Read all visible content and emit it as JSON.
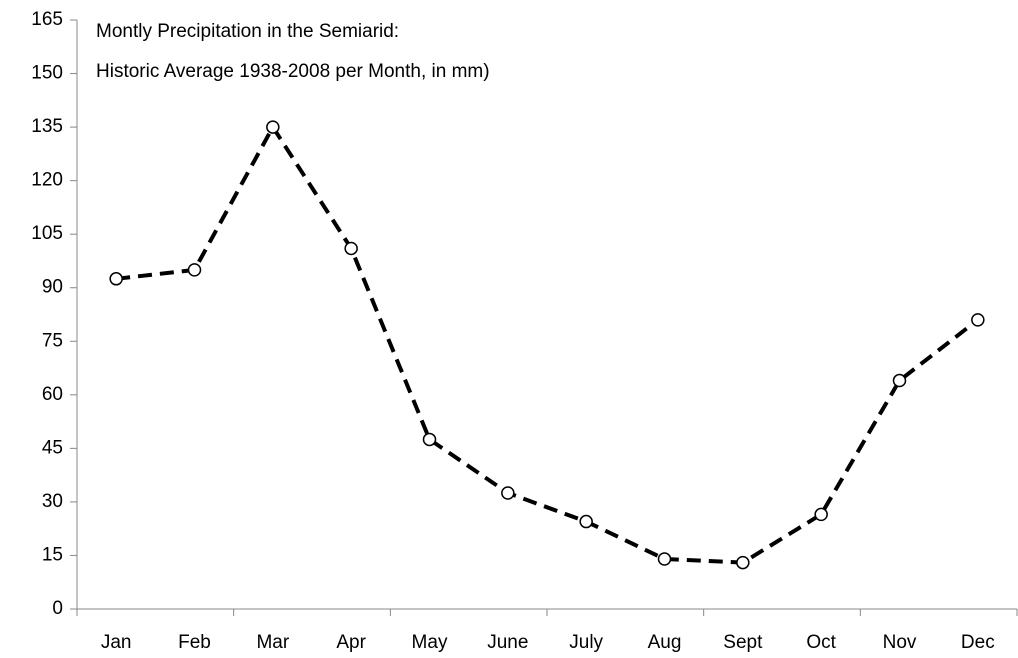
{
  "chart_data": {
    "type": "line",
    "title": "Montly Precipitation in the Semiarid:",
    "subtitle": "Historic Average 1938-2008 per Month, in mm)",
    "categories": [
      "Jan",
      "Feb",
      "Mar",
      "Apr",
      "May",
      "June",
      "July",
      "Aug",
      "Sept",
      "Oct",
      "Nov",
      "Dec"
    ],
    "series": [
      {
        "name": "Precipitation",
        "color": "#000000",
        "values": [
          92.5,
          95,
          135,
          101,
          47.5,
          32.5,
          24.5,
          14,
          13,
          26.5,
          64,
          81
        ]
      }
    ],
    "ylim": [
      0,
      165
    ],
    "yticks": [
      0,
      15,
      30,
      45,
      60,
      75,
      90,
      105,
      120,
      135,
      150,
      165
    ],
    "grid": false
  }
}
